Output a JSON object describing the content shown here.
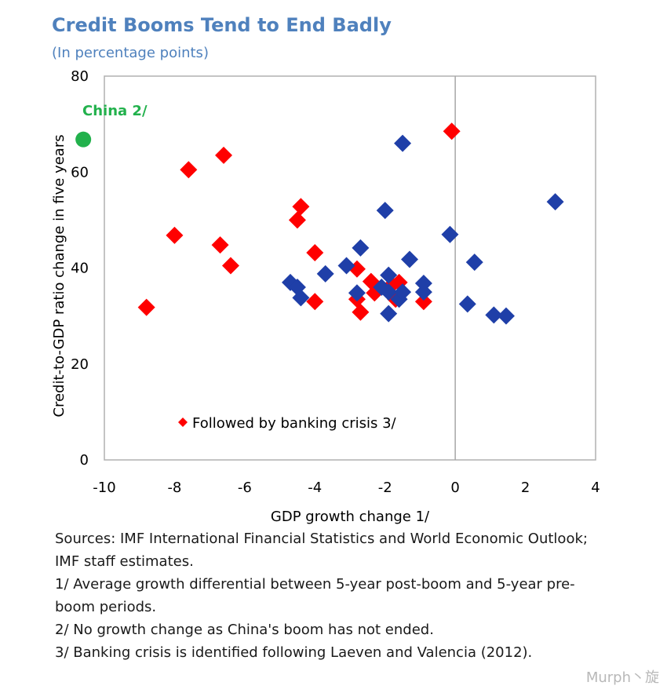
{
  "chart_data": {
    "type": "scatter",
    "title": "Credit Booms Tend to End Badly",
    "subtitle": "(In percentage points)",
    "xlabel": "GDP growth change 1/",
    "ylabel": "Credit-to-GDP ratio change in five years",
    "xlim": [
      -10,
      4
    ],
    "ylim": [
      0,
      80
    ],
    "x_ticks": [
      "-10",
      "-8",
      "-6",
      "-4",
      "-2",
      "0",
      "2",
      "4"
    ],
    "y_ticks": [
      "0",
      "20",
      "40",
      "60",
      "80"
    ],
    "grid": false,
    "legend_position": "lower-left inside",
    "series": [
      {
        "name": "Followed by banking crisis 3/",
        "color": "#ff0000",
        "marker": "diamond",
        "points": [
          [
            -8.8,
            31.8
          ],
          [
            -8.0,
            46.8
          ],
          [
            -7.6,
            60.5
          ],
          [
            -6.6,
            63.5
          ],
          [
            -6.7,
            44.8
          ],
          [
            -6.4,
            40.5
          ],
          [
            -4.5,
            50.0
          ],
          [
            -4.4,
            52.8
          ],
          [
            -4.0,
            43.2
          ],
          [
            -4.0,
            33.0
          ],
          [
            -2.8,
            39.8
          ],
          [
            -2.8,
            33.5
          ],
          [
            -2.7,
            30.8
          ],
          [
            -2.4,
            37.2
          ],
          [
            -2.3,
            34.8
          ],
          [
            -1.8,
            36.5
          ],
          [
            -1.7,
            33.5
          ],
          [
            -1.6,
            37.0
          ],
          [
            -0.9,
            33.0
          ],
          [
            -0.1,
            68.5
          ]
        ]
      },
      {
        "name": "",
        "color": "#1f3fa8",
        "marker": "diamond",
        "points": [
          [
            -4.7,
            37.0
          ],
          [
            -4.5,
            36.0
          ],
          [
            -4.4,
            33.8
          ],
          [
            -3.7,
            38.8
          ],
          [
            -3.1,
            40.5
          ],
          [
            -2.7,
            44.2
          ],
          [
            -2.8,
            34.8
          ],
          [
            -2.1,
            36.0
          ],
          [
            -2.0,
            52.0
          ],
          [
            -1.9,
            38.5
          ],
          [
            -1.9,
            35.0
          ],
          [
            -1.9,
            30.5
          ],
          [
            -1.6,
            33.5
          ],
          [
            -1.5,
            35.0
          ],
          [
            -1.5,
            66.0
          ],
          [
            -1.3,
            41.8
          ],
          [
            -0.9,
            36.8
          ],
          [
            -0.9,
            35.0
          ],
          [
            -0.15,
            47.0
          ],
          [
            0.35,
            32.5
          ],
          [
            0.55,
            41.2
          ],
          [
            1.1,
            30.2
          ],
          [
            1.45,
            30.0
          ],
          [
            2.85,
            53.8
          ]
        ]
      },
      {
        "name": "China 2/",
        "color": "#22b14c",
        "marker": "circle",
        "points": [
          [
            -10.6,
            66.8
          ]
        ]
      }
    ],
    "annotation": "China 2/",
    "legend_label": "Followed by banking crisis 3/"
  },
  "notes": [
    "Sources: IMF International Financial Statistics and World Economic Outlook;",
    "IMF staff estimates.",
    "1/ Average growth differential between 5-year post-boom and 5-year pre-",
    "boom periods.",
    "2/ No growth change as China's boom has not ended.",
    "3/ Banking crisis is identified following Laeven and Valencia (2012)."
  ],
  "watermark": "Murph丶旋"
}
